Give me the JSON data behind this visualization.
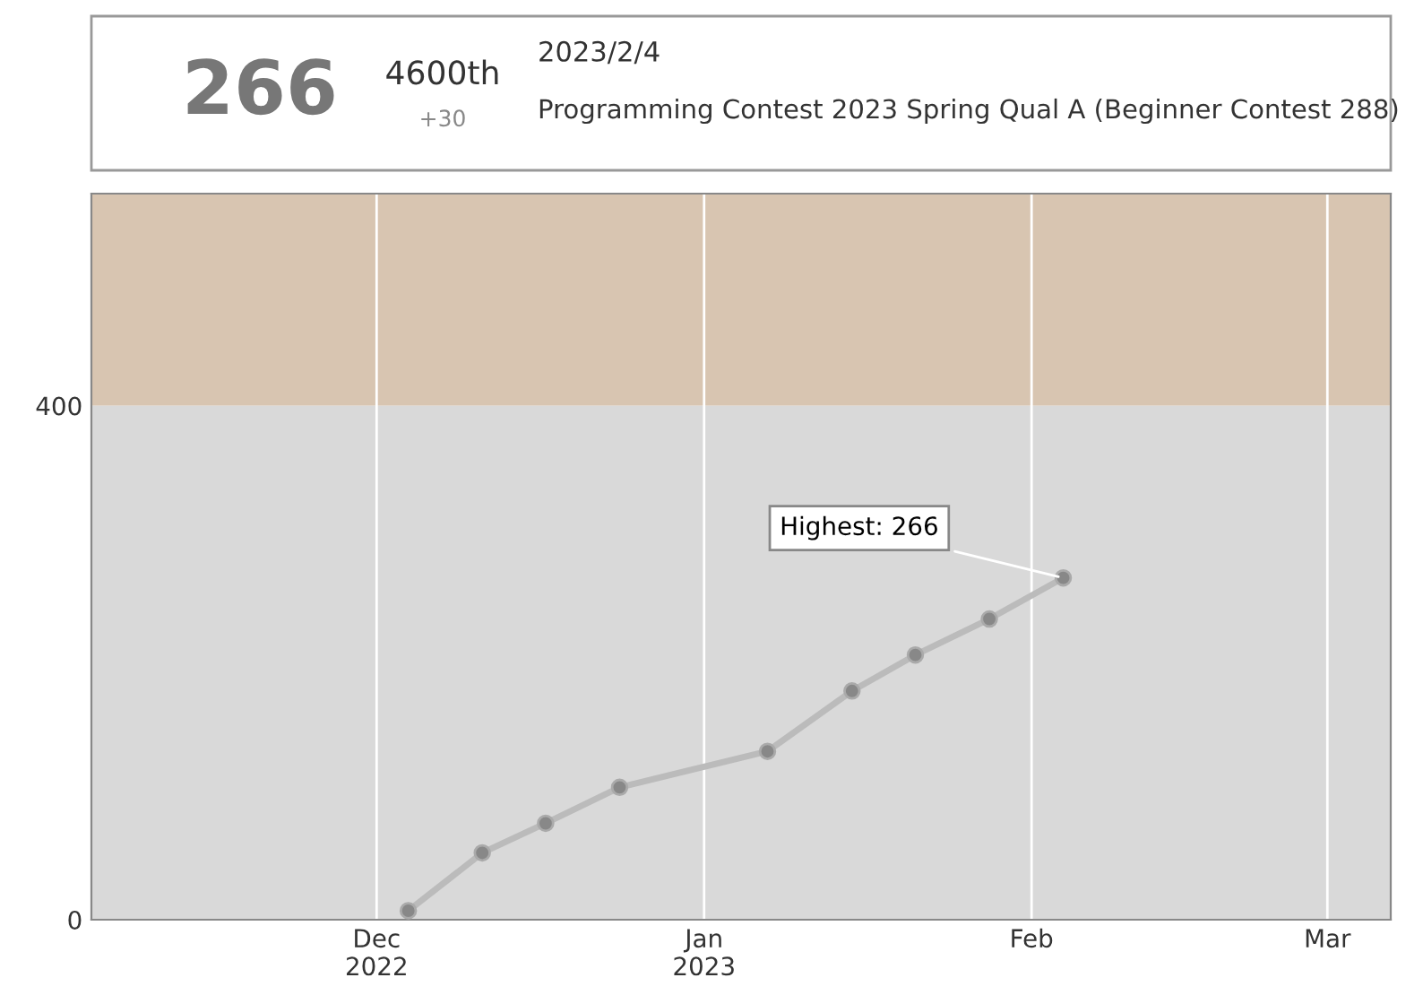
{
  "chart_data": {
    "type": "line",
    "x": [
      "2022-12-04",
      "2022-12-11",
      "2022-12-17",
      "2022-12-24",
      "2023-01-07",
      "2023-01-15",
      "2023-01-21",
      "2023-01-28",
      "2023-02-04"
    ],
    "series": [
      {
        "color": "#888888",
        "values": [
          7,
          52,
          75,
          103,
          131,
          178,
          206,
          234,
          266
        ]
      }
    ],
    "xlim": [
      "2022-11-04",
      "2023-03-07"
    ],
    "xticks": [
      {
        "value": "2022-12-01",
        "label": "Dec\n2022"
      },
      {
        "value": "2023-01-01",
        "label": "Jan\n2023"
      },
      {
        "value": "2023-02-01",
        "label": "Feb"
      },
      {
        "value": "2023-03-01",
        "label": "Mar"
      }
    ],
    "ylim": [
      0,
      565
    ],
    "yticks": [
      0,
      400
    ],
    "bands": [
      {
        "axis": "y",
        "from": 0,
        "to": 400,
        "color": "#d9d9d9"
      },
      {
        "axis": "y",
        "from": 400,
        "to": 565,
        "color": "#d8c5b1"
      }
    ],
    "grid": "x",
    "marker": "circle",
    "line_style": "solid",
    "annotations": [
      "266",
      "4600th",
      "+30",
      "2023/2/4",
      "Programming Contest 2023 Spring Qual A (Beginner Contest 288)",
      {
        "text": "Highest: 266",
        "x": "2023-02-04",
        "y": 266
      }
    ]
  }
}
